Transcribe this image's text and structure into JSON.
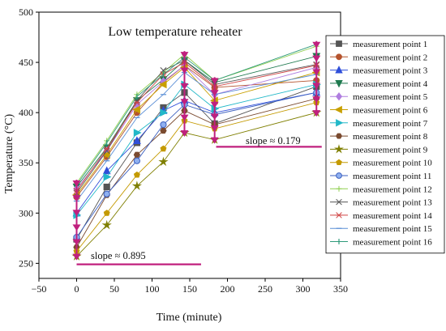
{
  "chart_data": {
    "type": "line",
    "title": "Low temperature reheater",
    "xlabel": "Time (minute)",
    "ylabel": "Temperature (°C)",
    "xlim": [
      -50,
      350
    ],
    "ylim": [
      235,
      500
    ],
    "xticks": [
      -50,
      0,
      50,
      100,
      150,
      200,
      250,
      300,
      350
    ],
    "yticks": [
      250,
      300,
      350,
      400,
      450,
      500
    ],
    "grid": false,
    "legend_position": "right",
    "x": [
      0,
      40,
      80,
      115,
      143,
      183,
      318
    ],
    "series": [
      {
        "name": "measurement point 1",
        "color": "#555555",
        "marker": "square",
        "values": [
          274,
          326,
          370,
          405,
          420,
          389,
          426
        ]
      },
      {
        "name": "measurement point 2",
        "color": "#b5532d",
        "marker": "circle",
        "values": [
          316,
          356,
          400,
          430,
          447,
          425,
          432
        ]
      },
      {
        "name": "measurement point 3",
        "color": "#2f4fd9",
        "marker": "triangle-up",
        "values": [
          300,
          342,
          372,
          402,
          412,
          400,
          420
        ]
      },
      {
        "name": "measurement point 4",
        "color": "#1f7a4f",
        "marker": "triangle-down",
        "values": [
          326,
          365,
          412,
          433,
          452,
          430,
          456
        ]
      },
      {
        "name": "measurement point 5",
        "color": "#b07ee0",
        "marker": "diamond",
        "values": [
          324,
          362,
          408,
          431,
          447,
          418,
          445
        ]
      },
      {
        "name": "measurement point 6",
        "color": "#c8a000",
        "marker": "triangle-left",
        "values": [
          318,
          358,
          403,
          428,
          445,
          412,
          440
        ]
      },
      {
        "name": "measurement point 7",
        "color": "#22b8c8",
        "marker": "triangle-right",
        "values": [
          298,
          336,
          380,
          400,
          428,
          404,
          428
        ]
      },
      {
        "name": "measurement point 8",
        "color": "#7a4a2f",
        "marker": "hexagon",
        "values": [
          266,
          318,
          358,
          382,
          402,
          388,
          414
        ]
      },
      {
        "name": "measurement point 9",
        "color": "#7f7f00",
        "marker": "star",
        "values": [
          257,
          288,
          327,
          351,
          380,
          373,
          400
        ]
      },
      {
        "name": "measurement point 10",
        "color": "#c49a00",
        "marker": "pentagon",
        "values": [
          262,
          300,
          338,
          364,
          392,
          384,
          410
        ]
      },
      {
        "name": "measurement point 11",
        "color": "#3b5fbf",
        "marker": "circle-shaded",
        "values": [
          276,
          319,
          352,
          388,
          408,
          398,
          420
        ]
      },
      {
        "name": "measurement point 12",
        "color": "#8fcf4f",
        "marker": "plus",
        "values": [
          330,
          372,
          418,
          440,
          458,
          432,
          466
        ]
      },
      {
        "name": "measurement point 13",
        "color": "#555555",
        "marker": "x",
        "values": [
          320,
          362,
          412,
          442,
          452,
          428,
          448
        ]
      },
      {
        "name": "measurement point 14",
        "color": "#d04545",
        "marker": "asterisk",
        "values": [
          322,
          364,
          410,
          438,
          450,
          426,
          447
        ]
      },
      {
        "name": "measurement point 15",
        "color": "#5b8fd6",
        "marker": "dash",
        "values": [
          312,
          352,
          395,
          418,
          440,
          418,
          438
        ]
      },
      {
        "name": "measurement point 16",
        "color": "#2e9a7a",
        "marker": "vbar",
        "values": [
          328,
          370,
          416,
          438,
          455,
          432,
          468
        ]
      }
    ],
    "annotations": [
      {
        "text": "slope ≈ 0.895",
        "x": 18,
        "y": 255
      },
      {
        "text": "slope ≈ 0.179",
        "x": 215,
        "y": 372
      }
    ],
    "slope_lines": [
      {
        "x1": 0,
        "y1": 249,
        "x2": 165,
        "y2": 249
      },
      {
        "x1": 185,
        "y1": 366,
        "x2": 325,
        "y2": 366
      }
    ],
    "highlight_color": "#c0207e",
    "highlight_x": [
      0,
      143,
      183,
      318
    ]
  }
}
